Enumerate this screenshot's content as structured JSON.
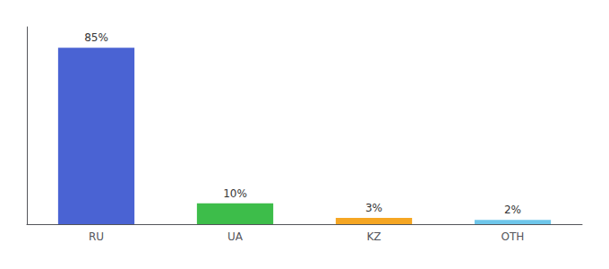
{
  "chart_data": {
    "type": "bar",
    "categories": [
      "RU",
      "UA",
      "KZ",
      "OTH"
    ],
    "values": [
      85,
      10,
      3,
      2
    ],
    "value_labels": [
      "85%",
      "10%",
      "3%",
      "2%"
    ],
    "colors": [
      "#4A63D3",
      "#3DBD4A",
      "#F5A623",
      "#6EC6EA"
    ],
    "ylim": [
      0,
      95
    ],
    "grid": false,
    "data_labels": true,
    "tick_labels": "x"
  }
}
